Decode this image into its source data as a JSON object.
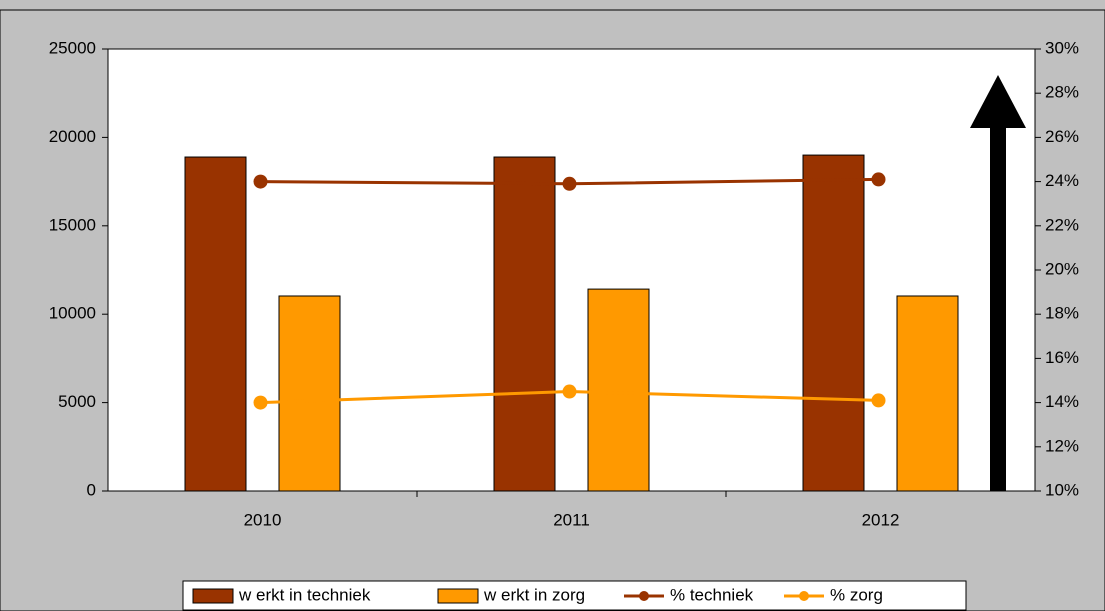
{
  "chart_data": {
    "type": "bar",
    "categories": [
      "2010",
      "2011",
      "2012"
    ],
    "series": [
      {
        "name": "w erkt in techniek",
        "color": "#993300",
        "values": [
          18890,
          18890,
          19000
        ]
      },
      {
        "name": "w erkt in zorg",
        "color": "#ff9900",
        "values": [
          11030,
          11420,
          11030
        ]
      },
      {
        "name": "% techniek",
        "color": "#993300",
        "type": "line",
        "axis": "y2",
        "values": [
          24.0,
          23.9,
          24.1
        ]
      },
      {
        "name": "% zorg",
        "color": "#ff9900",
        "type": "line",
        "axis": "y2",
        "values": [
          14.0,
          14.5,
          14.1
        ]
      }
    ],
    "ylim": [
      0,
      25000
    ],
    "yticks": [
      0,
      5000,
      10000,
      15000,
      20000,
      25000
    ],
    "y2lim": [
      10,
      30
    ],
    "y2ticks": [
      {
        "value": 10,
        "label": "10%"
      },
      {
        "value": 12,
        "label": "12%"
      },
      {
        "value": 14,
        "label": "14%"
      },
      {
        "value": 16,
        "label": "16%"
      },
      {
        "value": 18,
        "label": "18%"
      },
      {
        "value": 20,
        "label": "20%"
      },
      {
        "value": 22,
        "label": "22%"
      },
      {
        "value": 24,
        "label": "24%"
      },
      {
        "value": 26,
        "label": "26%"
      },
      {
        "value": 28,
        "label": "28%"
      },
      {
        "value": 30,
        "label": "30%"
      }
    ],
    "legend": "bottom",
    "grid": false
  }
}
